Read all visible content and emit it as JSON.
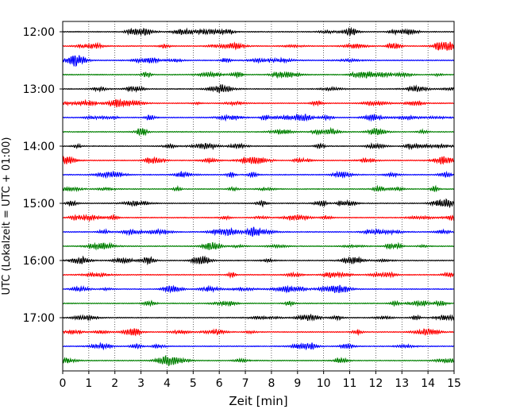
{
  "chart_data": {
    "type": "line",
    "title": "",
    "xlabel": "Zeit  [min]",
    "ylabel": "UTC (Lokalzeit = UTC + 01:00)",
    "xlim": [
      0,
      15
    ],
    "x_ticks": [
      "0",
      "1",
      "2",
      "3",
      "4",
      "5",
      "6",
      "7",
      "8",
      "9",
      "10",
      "11",
      "12",
      "13",
      "14",
      "15"
    ],
    "y_ticks": [
      "12:00",
      "13:00",
      "14:00",
      "15:00",
      "16:00",
      "17:00"
    ],
    "y_range": [
      "12:00",
      "18:00"
    ],
    "trace_interval_min": 15,
    "trace_count": 24,
    "trace_colors": [
      "#000000",
      "#ff0000",
      "#0000ff",
      "#008000"
    ],
    "grid": {
      "x": true,
      "style": "dotted"
    },
    "series": [
      {
        "start": "12:00",
        "color": "#000000"
      },
      {
        "start": "12:15",
        "color": "#ff0000"
      },
      {
        "start": "12:30",
        "color": "#0000ff"
      },
      {
        "start": "12:45",
        "color": "#008000"
      },
      {
        "start": "13:00",
        "color": "#000000"
      },
      {
        "start": "13:15",
        "color": "#ff0000"
      },
      {
        "start": "13:30",
        "color": "#0000ff"
      },
      {
        "start": "13:45",
        "color": "#008000"
      },
      {
        "start": "14:00",
        "color": "#000000"
      },
      {
        "start": "14:15",
        "color": "#ff0000"
      },
      {
        "start": "14:30",
        "color": "#0000ff"
      },
      {
        "start": "14:45",
        "color": "#008000"
      },
      {
        "start": "15:00",
        "color": "#000000"
      },
      {
        "start": "15:15",
        "color": "#ff0000"
      },
      {
        "start": "15:30",
        "color": "#0000ff"
      },
      {
        "start": "15:45",
        "color": "#008000"
      },
      {
        "start": "16:00",
        "color": "#000000"
      },
      {
        "start": "16:15",
        "color": "#ff0000"
      },
      {
        "start": "16:30",
        "color": "#0000ff"
      },
      {
        "start": "16:45",
        "color": "#008000"
      },
      {
        "start": "17:00",
        "color": "#000000"
      },
      {
        "start": "17:15",
        "color": "#ff0000"
      },
      {
        "start": "17:30",
        "color": "#0000ff"
      },
      {
        "start": "17:45",
        "color": "#008000"
      }
    ]
  }
}
